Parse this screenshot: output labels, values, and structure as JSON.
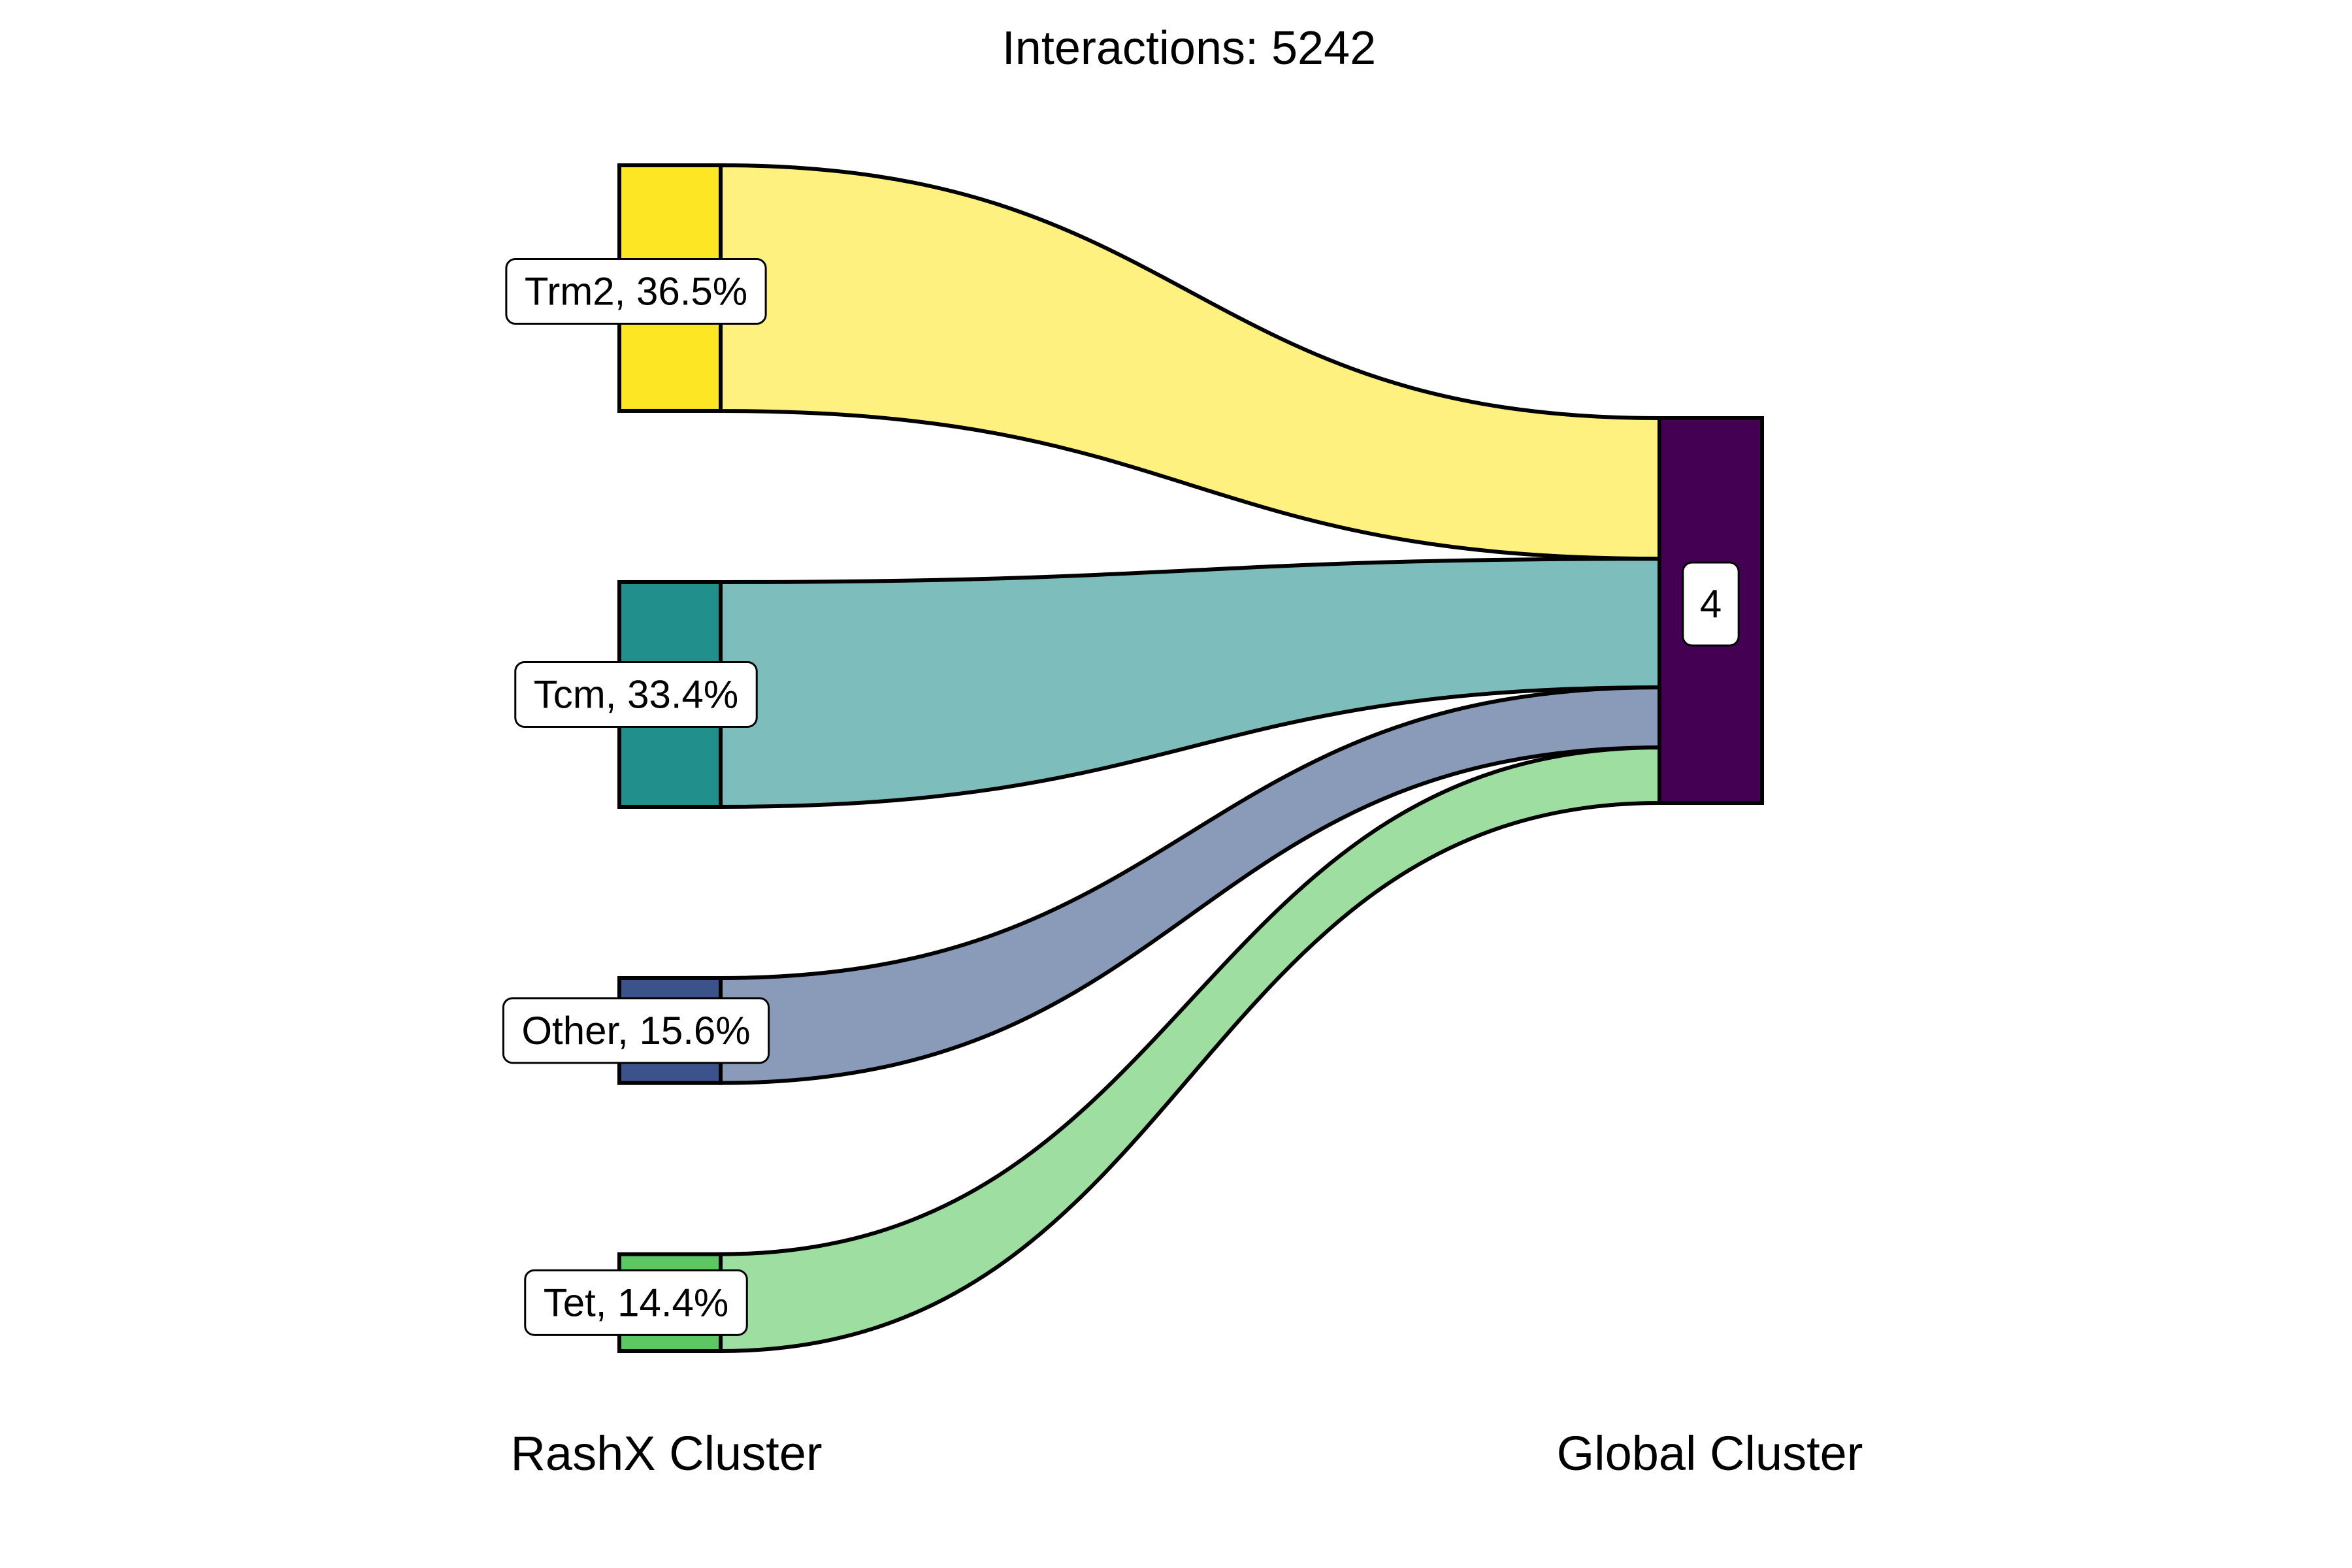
{
  "chart_data": {
    "type": "sankey",
    "title": "Interactions: 5242",
    "axes": {
      "left_label": "RashX Cluster",
      "right_label": "Global Cluster"
    },
    "source_nodes": [
      {
        "name": "Trm2",
        "percent": 36.5,
        "label": "Trm2, 36.5%",
        "node_color": "#FDE725",
        "flow_color": "#FEF17F"
      },
      {
        "name": "Tcm",
        "percent": 33.4,
        "label": "Tcm, 33.4%",
        "node_color": "#21908C",
        "flow_color": "#7DBDBB"
      },
      {
        "name": "Other",
        "percent": 15.6,
        "label": "Other, 15.6%",
        "node_color": "#3B528B",
        "flow_color": "#8A9AB9"
      },
      {
        "name": "Tet",
        "percent": 14.4,
        "label": "Tet, 14.4%",
        "node_color": "#5DC863",
        "flow_color": "#9EDFA1"
      }
    ],
    "target_nodes": [
      {
        "name": "4",
        "label": "4",
        "node_color": "#440154"
      }
    ],
    "flows": [
      {
        "source": "Trm2",
        "target": "4",
        "percent": 36.5
      },
      {
        "source": "Tcm",
        "target": "4",
        "percent": 33.4
      },
      {
        "source": "Other",
        "target": "4",
        "percent": 15.6
      },
      {
        "source": "Tet",
        "target": "4",
        "percent": 14.4
      }
    ]
  }
}
